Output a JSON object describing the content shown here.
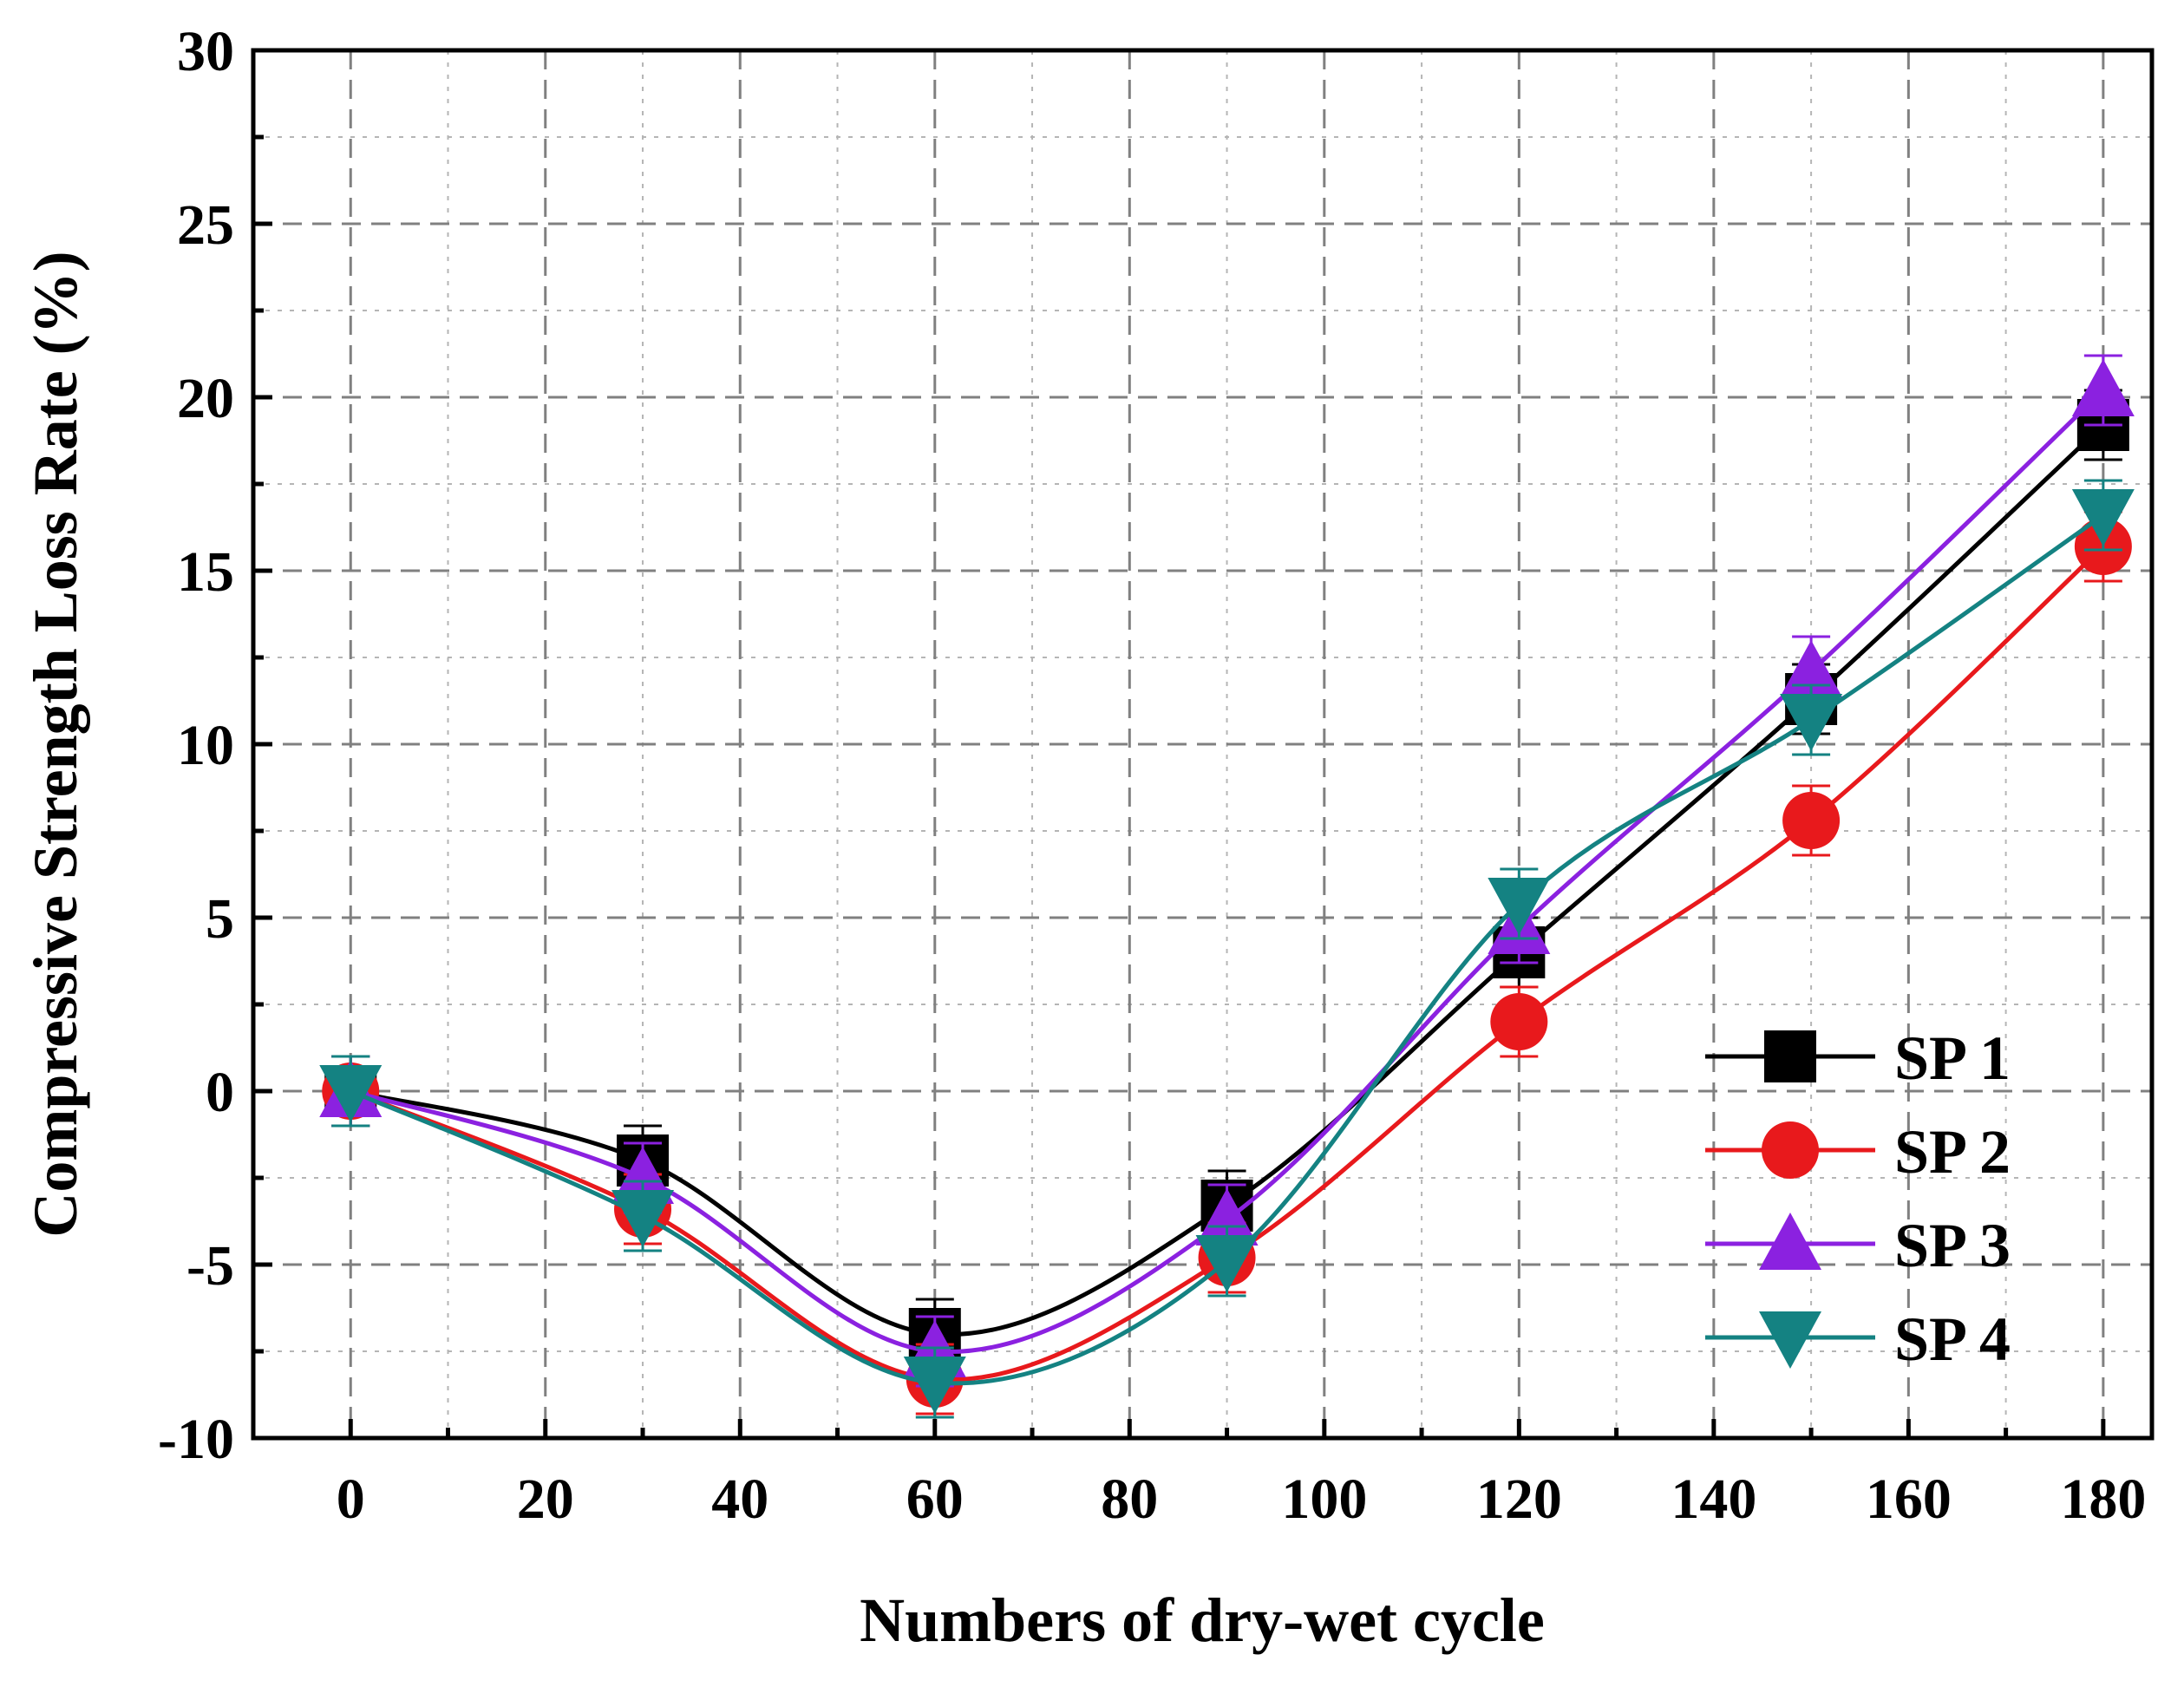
{
  "chart_data": {
    "type": "line",
    "title": "",
    "xlabel": "Numbers of dry-wet cycle",
    "ylabel": "Compressive Strength Loss Rate (%)",
    "xlim": [
      -10,
      185
    ],
    "ylim": [
      -10,
      30
    ],
    "x_ticks": [
      0,
      20,
      40,
      60,
      80,
      100,
      120,
      140,
      160,
      180
    ],
    "y_ticks": [
      -10,
      -5,
      0,
      5,
      10,
      15,
      20,
      25,
      30
    ],
    "x": [
      0,
      30,
      60,
      90,
      120,
      150,
      180
    ],
    "legend_position": "bottom-right",
    "grid": true,
    "series": [
      {
        "name": "SP 1",
        "marker": "square",
        "color": "#000000",
        "values": [
          0,
          -2,
          -7,
          -3.3,
          4,
          11.3,
          19.2
        ],
        "error": [
          1,
          1,
          1,
          1,
          1,
          1,
          1
        ]
      },
      {
        "name": "SP 2",
        "marker": "circle",
        "color": "#e8191c",
        "values": [
          0,
          -3.4,
          -8.3,
          -4.8,
          2,
          7.8,
          15.7
        ],
        "error": [
          1,
          1,
          1,
          1,
          1,
          1,
          1
        ]
      },
      {
        "name": "SP 3",
        "marker": "triangle-up",
        "color": "#8b21e0",
        "values": [
          0,
          -2.5,
          -7.5,
          -3.7,
          4.7,
          12.1,
          20.2
        ],
        "error": [
          1,
          1,
          1,
          1,
          1,
          1,
          1
        ]
      },
      {
        "name": "SP 4",
        "marker": "triangle-down",
        "color": "#148282",
        "values": [
          0,
          -3.6,
          -8.4,
          -4.9,
          5.4,
          10.7,
          16.6
        ],
        "error": [
          1,
          1,
          1,
          1,
          1,
          1,
          1
        ]
      }
    ]
  }
}
